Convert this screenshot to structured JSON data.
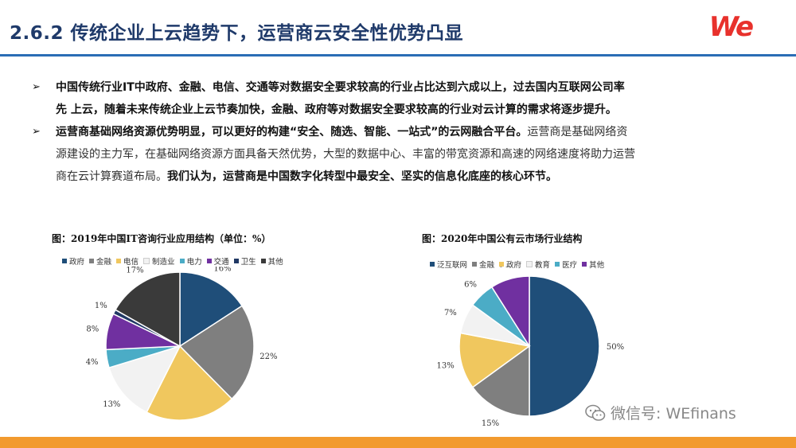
{
  "header": {
    "title": "2.6.2 传统企业上云趋势下，运营商云安全性优势凸显",
    "logo": "We"
  },
  "bullets": {
    "marker": "➢",
    "b1_line1": "中国传统行业IT中政府、金融、电信、交通等对数据安全要求较高的行业占比达到六成以上，过去国内互联网公司率",
    "b1_line2": "先 上云，随着未来传统企业上云节奏加快，金融、政府等对数据安全要求较高的行业对云计算的需求将逐步提升。",
    "b2_bold": "运营商基础网络资源优势明显，可以更好的构建“安全、随选、智能、一站式”的云网融合平台。",
    "b2_light": "运营商是基础网络资",
    "b2_line2": "源建设的主力军，在基础网络资源方面具备天然优势，大型的数据中心、丰富的带宽资源和高速的网络速度将助力运营",
    "b2_line3_light": "商在云计算赛道布局。",
    "b2_line3_bold": "我们认为，运营商是中国数字化转型中最安全、坚实的信息化底座的核心环节。"
  },
  "watermark": "微信号: WEfinans",
  "chart_data": [
    {
      "type": "pie",
      "title": "图：2019年中国IT咨询行业应用结构（单位：%）",
      "categories": [
        "政府",
        "金融",
        "电信",
        "制造业",
        "电力",
        "交通",
        "卫生",
        "其他"
      ],
      "values": [
        16,
        22,
        20,
        13,
        4,
        8,
        1,
        17
      ],
      "labels": [
        "16%",
        "22%",
        "",
        "13%",
        "4%",
        "8%",
        "1%",
        "17%"
      ],
      "colors": [
        "#1f4e79",
        "#7f7f7f",
        "#f0c75e",
        "#f2f2f2",
        "#4bacc6",
        "#7030a0",
        "#203864",
        "#3a3a3a"
      ],
      "legend": "top"
    },
    {
      "type": "pie",
      "title": "图：2020年中国公有云市场行业结构",
      "categories": [
        "泛互联网",
        "金融",
        "政府",
        "教育",
        "医疗",
        "其他"
      ],
      "values": [
        50,
        15,
        13,
        7,
        6,
        9
      ],
      "labels": [
        "50%",
        "15%",
        "13%",
        "7%",
        "6%",
        "9%"
      ],
      "colors": [
        "#1f4e79",
        "#7f7f7f",
        "#f0c75e",
        "#f2f2f2",
        "#4bacc6",
        "#7030a0"
      ],
      "legend": "top"
    }
  ]
}
